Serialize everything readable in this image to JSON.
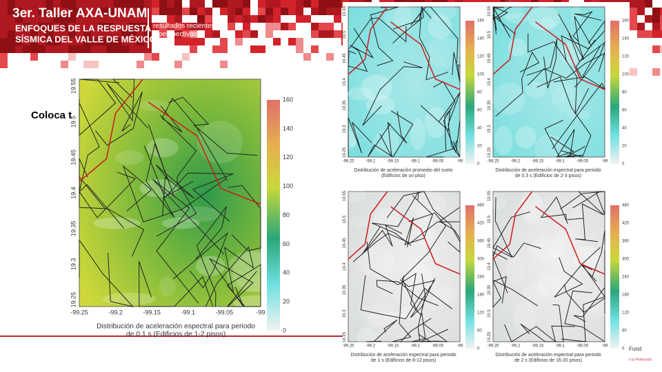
{
  "header": {
    "title": "3er. Taller AXA-UNAM",
    "subtitle": [
      "ENFOQUES DE LA RESPUESTA",
      "SÍSMICA DEL VALLE DE MÉXICO"
    ],
    "tagline": [
      "resultados recientes",
      "y perspectivas"
    ]
  },
  "body_text": "Coloca t",
  "main_map": {
    "xticks": [
      "-99.25",
      "-99.2",
      "-99.15",
      "-99.1",
      "-99.05",
      "-99"
    ],
    "yticks": [
      "19.55",
      "19.5",
      "19.45",
      "19.4",
      "19.35",
      "19.3",
      "19.25"
    ],
    "colorbar_ticks": [
      "160",
      "140",
      "120",
      "100",
      "80",
      "60",
      "40",
      "20",
      "0"
    ],
    "caption": [
      "Distribución de aceleración espectral para periodo",
      "de 0.1 s (Edificios de 1-2 pisos)"
    ]
  },
  "small_maps": [
    {
      "xticks": [
        "-99.25",
        "-99.2",
        "-99.15",
        "-99.1",
        "-99.05",
        "-99"
      ],
      "yticks": [
        "19.55",
        "19.5",
        "19.45",
        "19.4",
        "19.35",
        "19.3",
        "19.25"
      ],
      "colorbar_ticks": [
        "160",
        "140",
        "120",
        "100",
        "80",
        "60",
        "40",
        "20",
        "0"
      ],
      "caption": [
        "Distribución de aceleración promedio del suelo",
        "(Edificios de un piso)"
      ]
    },
    {
      "xticks": [
        "-99.25",
        "-99.2",
        "-99.15",
        "-99.1",
        "-99.05",
        "-99"
      ],
      "yticks": [
        "19.55",
        "19.5",
        "19.45",
        "19.4",
        "19.35",
        "19.3",
        "19.25"
      ],
      "colorbar_ticks": [
        "160",
        "140",
        "120",
        "100",
        "80",
        "60",
        "40",
        "20",
        "0"
      ],
      "caption": [
        "Distribución de aceleración espectral para periodo",
        "de 0.3 s (Edificios de 2-3 pisos)"
      ]
    },
    {
      "xticks": [
        "-99.25",
        "-99.2",
        "-99.15",
        "-99.1",
        "-99.05",
        "-99"
      ],
      "yticks": [
        "19.55",
        "19.5",
        "19.45",
        "19.4",
        "19.35",
        "19.3",
        "19.25"
      ],
      "colorbar_ticks": [
        "480",
        "420",
        "360",
        "300",
        "240",
        "180",
        "120",
        "60",
        "0"
      ],
      "caption": [
        "Distribución de aceleración espectral para periodo",
        "de 1 s (Edificios de 8-12 pisos)"
      ]
    },
    {
      "xticks": [
        "-99.25",
        "-99.2",
        "-99.15",
        "-99.1",
        "-99.05",
        "-99"
      ],
      "yticks": [
        "19.55",
        "19.5",
        "19.45",
        "19.4",
        "19.35",
        "19.3",
        "19.25"
      ],
      "colorbar_ticks": [
        "480",
        "420",
        "360",
        "300",
        "240",
        "180",
        "120",
        "60",
        "0"
      ],
      "caption": [
        "Distribución de aceleración espectral para periodo",
        "de 2 s (Edificios de 16-20 pisos)"
      ]
    }
  ],
  "footer": [
    "Fund",
    "n la Protección"
  ]
}
